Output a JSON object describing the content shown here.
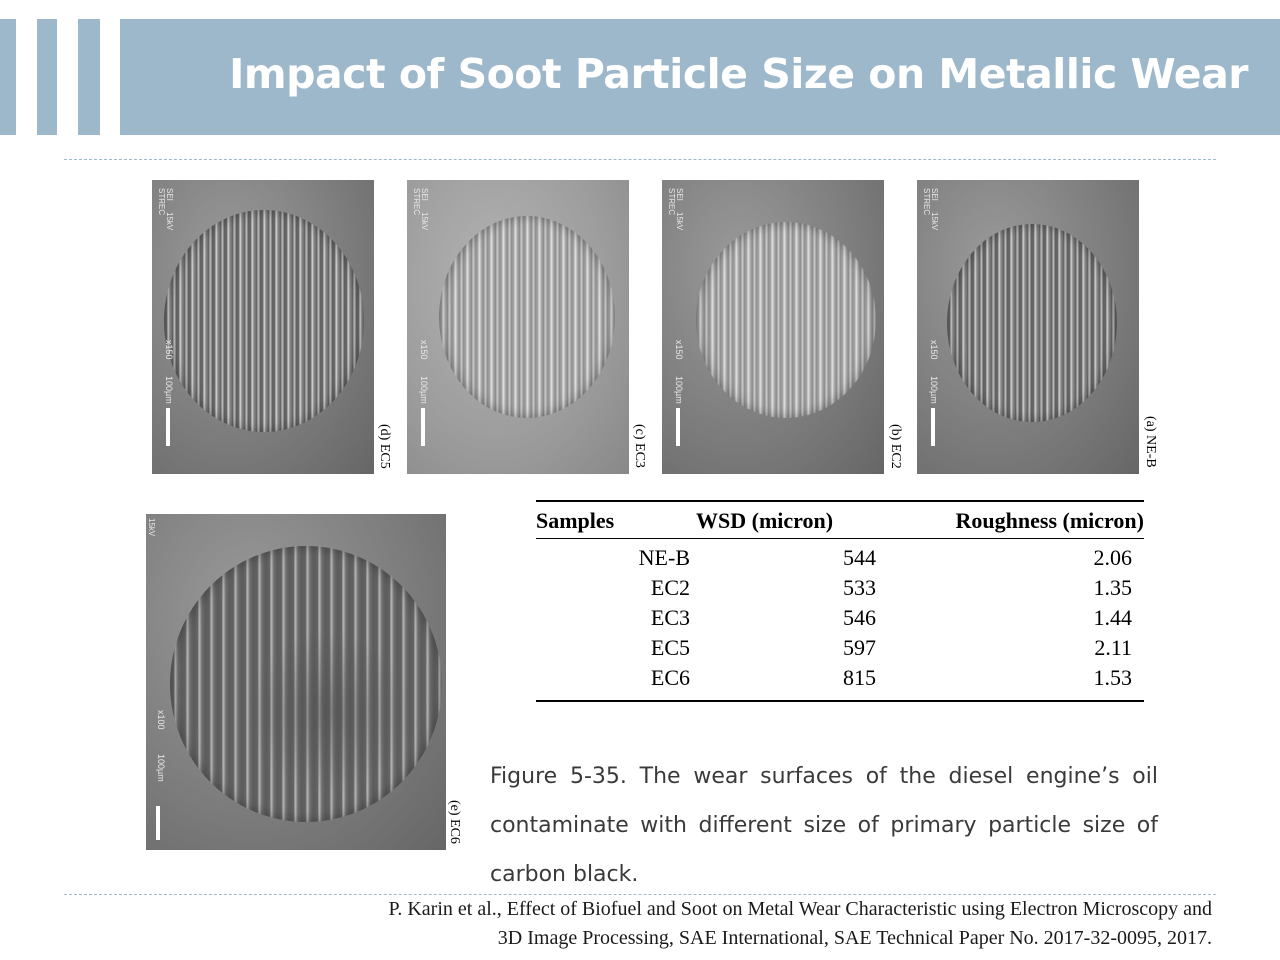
{
  "header": {
    "title": "Impact of Soot Particle Size on Metallic Wear",
    "accent_color": "#9db7cb"
  },
  "figures": {
    "sem_text": {
      "sei": "SEI",
      "kv": "15kV",
      "strec": "STREC",
      "mag_150": "x150",
      "scale_100": "100µm",
      "mag_100": "x100"
    },
    "panels": [
      {
        "label": "(d) EC5"
      },
      {
        "label": "(c) EC3"
      },
      {
        "label": "(b) EC2"
      },
      {
        "label": "(a) NE-B"
      },
      {
        "label": "(e) EC6"
      }
    ]
  },
  "table": {
    "headers": [
      "Samples",
      "WSD (micron)",
      "Roughness (micron)"
    ],
    "rows": [
      [
        "NE-B",
        "544",
        "2.06"
      ],
      [
        "EC2",
        "533",
        "1.35"
      ],
      [
        "EC3",
        "546",
        "1.44"
      ],
      [
        "EC5",
        "597",
        "2.11"
      ],
      [
        "EC6",
        "815",
        "1.53"
      ]
    ]
  },
  "caption": "Figure 5-35. The wear surfaces of the diesel engine’s oil contaminate with different size of primary particle size of carbon black.",
  "citation": {
    "line1": "P. Karin et al., Effect of Biofuel and Soot on Metal Wear Characteristic using Electron Microscopy and",
    "line2": "3D Image Processing, SAE International, SAE Technical Paper No. 2017-32-0095, 2017."
  }
}
